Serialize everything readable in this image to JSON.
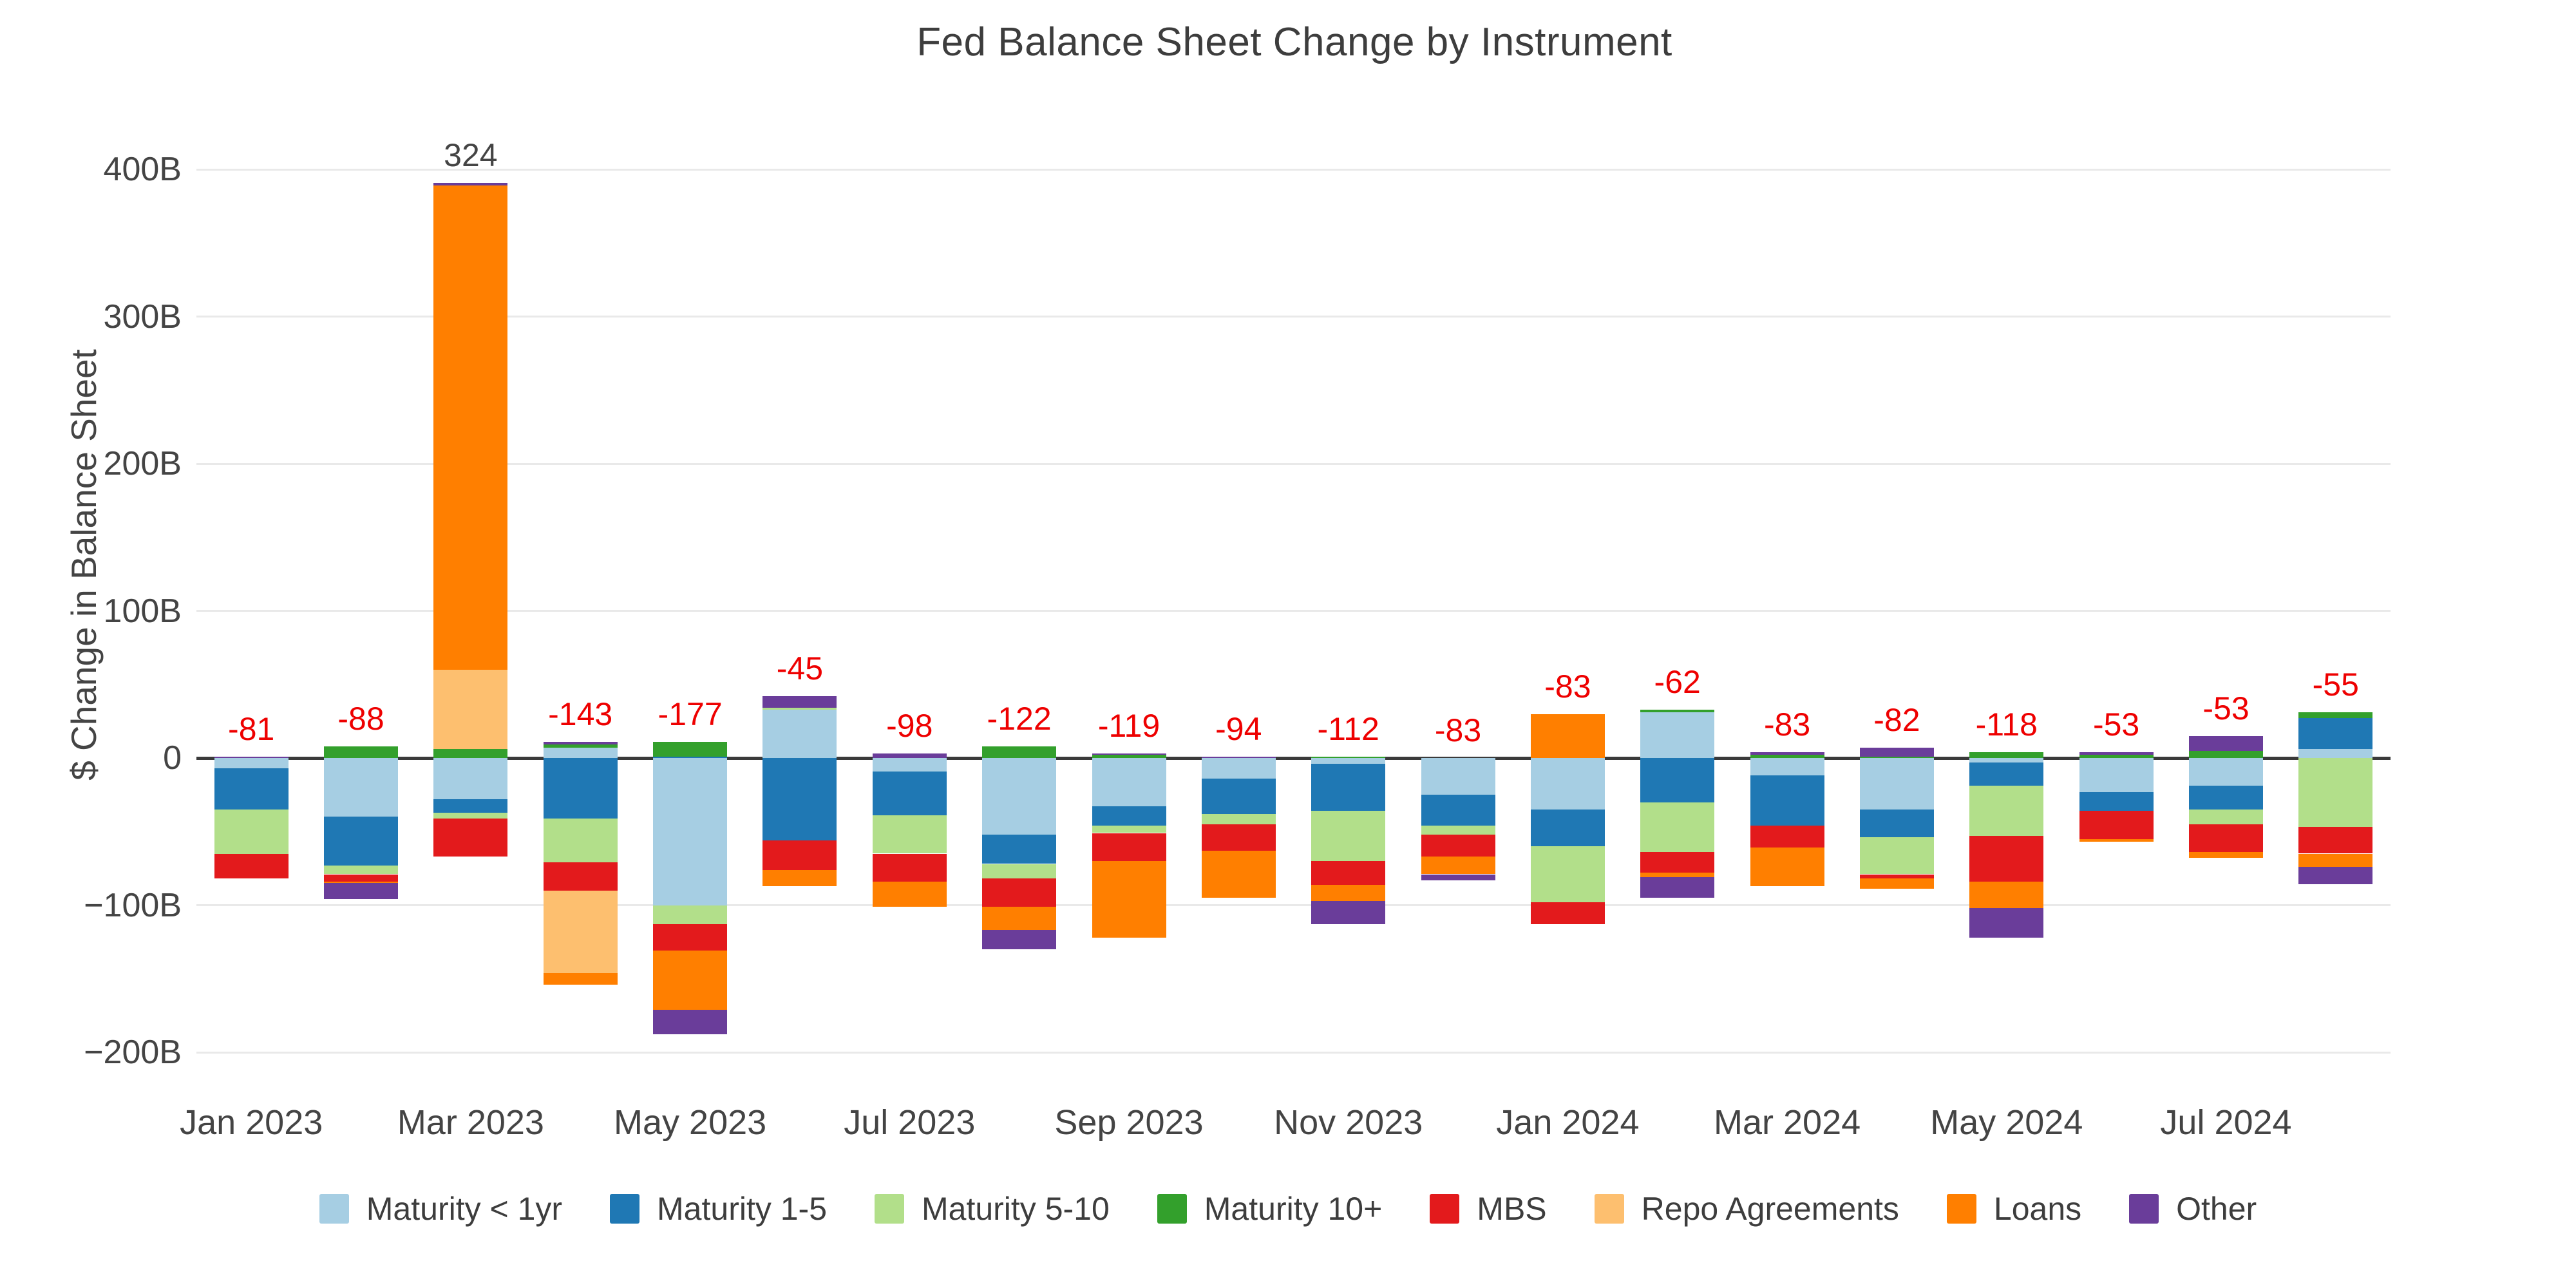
{
  "page": {
    "title": "Fed Balance Sheet Change by Instrument"
  },
  "chart_data": {
    "type": "bar",
    "stacked": true,
    "barmode": "relative",
    "title": "Fed Balance Sheet Change by Instrument",
    "xlabel": "",
    "ylabel": "$ Change in Balance Sheet",
    "units": "billions USD",
    "ylim": [
      -230,
      430
    ],
    "grid": true,
    "legend_position": "bottom",
    "y_ticks": [
      {
        "value": 400,
        "label": "400B"
      },
      {
        "value": 300,
        "label": "300B"
      },
      {
        "value": 200,
        "label": "200B"
      },
      {
        "value": 100,
        "label": "100B"
      },
      {
        "value": 0,
        "label": "0"
      },
      {
        "value": -100,
        "label": "−100B"
      },
      {
        "value": -200,
        "label": "−200B"
      }
    ],
    "categories": [
      "Jan 2023",
      "Feb 2023",
      "Mar 2023",
      "Apr 2023",
      "May 2023",
      "Jun 2023",
      "Jul 2023",
      "Aug 2023",
      "Sep 2023",
      "Oct 2023",
      "Nov 2023",
      "Dec 2023",
      "Jan 2024",
      "Feb 2024",
      "Mar 2024",
      "Apr 2024",
      "May 2024",
      "Jun 2024",
      "Jul 2024",
      "Aug 2024"
    ],
    "x_tick_every": 2,
    "x_tick_labels": [
      "Jan 2023",
      "Mar 2023",
      "May 2023",
      "Jul 2023",
      "Sep 2023",
      "Nov 2023",
      "Jan 2024",
      "Mar 2024",
      "May 2024",
      "Jul 2024"
    ],
    "series": [
      {
        "name": "Maturity < 1yr",
        "color": "#a6cee3",
        "values": [
          -7,
          -40,
          -28,
          7,
          -100,
          33,
          -9,
          -52,
          -33,
          -14,
          -4,
          -25,
          -35,
          31,
          -12,
          -35,
          -3,
          -23,
          -19,
          6
        ]
      },
      {
        "name": "Maturity 1-5",
        "color": "#1f78b4",
        "values": [
          -28,
          -33,
          -9,
          -41,
          1,
          -56,
          -30,
          -20,
          -13,
          -24,
          -32,
          -21,
          -25,
          -30,
          -34,
          -19,
          -16,
          -13,
          -16,
          21
        ]
      },
      {
        "name": "Maturity 5-10",
        "color": "#b2df8a",
        "values": [
          -30,
          -6,
          -4,
          -30,
          -13,
          1,
          -26,
          -10,
          -5,
          -7,
          -34,
          -6,
          -38,
          -34,
          0,
          -25,
          -34,
          0,
          -10,
          -47
        ]
      },
      {
        "name": "Maturity 10+",
        "color": "#33a02c",
        "values": [
          0,
          8,
          6,
          2,
          10,
          0,
          0,
          8,
          2,
          0,
          1,
          0,
          0,
          2,
          2,
          1,
          4,
          2,
          5,
          4
        ]
      },
      {
        "name": "MBS",
        "color": "#e31a1c",
        "values": [
          -17,
          -5,
          -26,
          -19,
          -18,
          -20,
          -19,
          -19,
          -19,
          -18,
          -16,
          -15,
          -15,
          -14,
          -15,
          -3,
          -31,
          -19,
          -19,
          -18
        ]
      },
      {
        "name": "Repo Agreements",
        "color": "#fdbf6f",
        "values": [
          0,
          0,
          54,
          -56,
          0,
          0,
          0,
          0,
          0,
          0,
          0,
          0,
          0,
          0,
          0,
          0,
          0,
          0,
          0,
          0
        ]
      },
      {
        "name": "Loans",
        "color": "#ff7f00",
        "values": [
          0,
          -1,
          329,
          -8,
          -40,
          -11,
          -17,
          -16,
          -52,
          -32,
          -11,
          -12,
          30,
          -3,
          -26,
          -7,
          -18,
          -2,
          -4,
          -9
        ]
      },
      {
        "name": "Other",
        "color": "#6a3d9a",
        "values": [
          1,
          -11,
          2,
          2,
          -17,
          8,
          3,
          -13,
          1,
          1,
          -16,
          -4,
          0,
          -14,
          2,
          6,
          -20,
          2,
          10,
          -12
        ]
      }
    ],
    "totals": [
      -81,
      -88,
      324,
      -143,
      -177,
      -45,
      -98,
      -122,
      -119,
      -94,
      -112,
      -83,
      -83,
      -62,
      -83,
      -82,
      -118,
      -53,
      -53,
      -55
    ],
    "total_labels": [
      "-81",
      "-88",
      "324",
      "-143",
      "-177",
      "-45",
      "-98",
      "-122",
      "-119",
      "-94",
      "-112",
      "-83",
      "-83",
      "-62",
      "-83",
      "-82",
      "-118",
      "-53",
      "-53",
      "-55"
    ],
    "total_label_color_negative": "#ee0000",
    "total_label_color_positive": "#444444",
    "axis_text_color": "#444444",
    "gridline_color": "#e9e9e9",
    "zeroline_color": "#3a3a3a"
  }
}
